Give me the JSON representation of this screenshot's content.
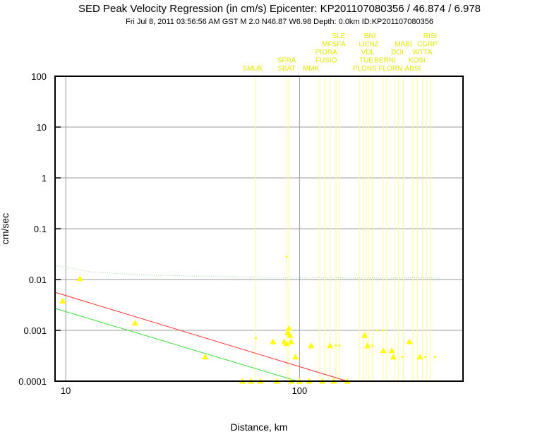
{
  "title": "SED Peak Velocity Regression (in cm/s) Epicenter: KP201107080356 / 46.874 / 6.978",
  "subtitle": "Fri Jul  8, 2011 03:56:56 AM GST   M 2.0   N46.87 W6.98   Depth: 0.0km   ID:KP201107080356",
  "colors": {
    "station": "#ffff00",
    "label": "#e6e600",
    "guide": "#ffff99",
    "regression_red": "#ff3030",
    "regression_green": "#33dd33",
    "upper_dotted": "#99dd99",
    "grid": "#999999",
    "frame": "#000000"
  },
  "chart_data": {
    "type": "scatter",
    "title": "SED Peak Velocity Regression (in cm/s) Epicenter: KP201107080356 / 46.874 / 6.978",
    "xlabel": "Distance, km",
    "ylabel": "cm/sec",
    "xscale": "log",
    "yscale": "log",
    "xlim": [
      9,
      500
    ],
    "ylim": [
      0.0001,
      100
    ],
    "x_ticks": [
      "10",
      "100"
    ],
    "y_ticks": [
      "0.0001",
      "0.001",
      "0.01",
      "0.1",
      "1",
      "10",
      "100"
    ],
    "grid": true,
    "marker": "triangle",
    "points": [
      {
        "x": 9.7,
        "y": 0.0038
      },
      {
        "x": 11.5,
        "y": 0.0105
      },
      {
        "x": 19.8,
        "y": 0.0014
      },
      {
        "x": 39.5,
        "y": 0.0003
      },
      {
        "x": 77,
        "y": 0.0006
      },
      {
        "x": 86,
        "y": 0.0006
      },
      {
        "x": 88,
        "y": 0.00055
      },
      {
        "x": 89,
        "y": 0.0009
      },
      {
        "x": 90,
        "y": 0.0011
      },
      {
        "x": 91,
        "y": 0.0008
      },
      {
        "x": 92,
        "y": 0.0006
      },
      {
        "x": 96,
        "y": 0.0003
      },
      {
        "x": 112,
        "y": 0.0005
      },
      {
        "x": 135,
        "y": 0.0005
      },
      {
        "x": 190,
        "y": 0.0008
      },
      {
        "x": 195,
        "y": 0.0005
      },
      {
        "x": 228,
        "y": 0.0004
      },
      {
        "x": 248,
        "y": 0.0004
      },
      {
        "x": 252,
        "y": 0.0003
      },
      {
        "x": 295,
        "y": 0.0006
      },
      {
        "x": 327,
        "y": 0.0003
      },
      {
        "x": 57,
        "y": 0.0001
      },
      {
        "x": 62,
        "y": 0.0001
      },
      {
        "x": 68,
        "y": 0.0001
      },
      {
        "x": 80,
        "y": 0.0001
      },
      {
        "x": 92,
        "y": 0.0001
      },
      {
        "x": 100,
        "y": 0.0001
      },
      {
        "x": 110,
        "y": 0.0001
      },
      {
        "x": 125,
        "y": 0.0001
      },
      {
        "x": 140,
        "y": 0.0001
      },
      {
        "x": 160,
        "y": 0.0001
      }
    ],
    "small_markers": [
      {
        "x": 65,
        "y": 0.0007
      },
      {
        "x": 88,
        "y": 0.028
      },
      {
        "x": 143,
        "y": 0.0005
      },
      {
        "x": 148,
        "y": 0.0005
      },
      {
        "x": 205,
        "y": 0.0005
      },
      {
        "x": 215,
        "y": 0.001
      },
      {
        "x": 228,
        "y": 0.001
      },
      {
        "x": 275,
        "y": 0.0003
      },
      {
        "x": 345,
        "y": 0.0003
      },
      {
        "x": 380,
        "y": 0.0003
      }
    ],
    "regression_lines": [
      {
        "color": "red",
        "x": [
          9,
          160
        ],
        "y": [
          0.0056,
          0.0001
        ]
      },
      {
        "color": "green",
        "x": [
          9,
          98
        ],
        "y": [
          0.0027,
          0.0001
        ]
      }
    ],
    "upper_curve": {
      "x": [
        9,
        13,
        20,
        40,
        80,
        150,
        250,
        400
      ],
      "y": [
        0.019,
        0.014,
        0.0125,
        0.0115,
        0.011,
        0.0108,
        0.0108,
        0.0109
      ]
    },
    "station_labels": [
      {
        "text": "SMUK",
        "x": 63,
        "row": 0
      },
      {
        "text": "SFRA",
        "x": 88,
        "row": 1
      },
      {
        "text": "SBAT",
        "x": 88,
        "row": 0
      },
      {
        "text": "MMK",
        "x": 112,
        "row": 0
      },
      {
        "text": "PIORA",
        "x": 130,
        "row": 2
      },
      {
        "text": "FUSIO",
        "x": 130,
        "row": 1
      },
      {
        "text": "SLE",
        "x": 147,
        "row": 4
      },
      {
        "text": "MFSFA",
        "x": 140,
        "row": 3
      },
      {
        "text": "BNI",
        "x": 200,
        "row": 4
      },
      {
        "text": "LIENZ",
        "x": 198,
        "row": 3
      },
      {
        "text": "VDL",
        "x": 196,
        "row": 2
      },
      {
        "text": "TUE",
        "x": 193,
        "row": 1
      },
      {
        "text": "PLONS",
        "x": 190,
        "row": 0
      },
      {
        "text": "BERNI",
        "x": 232,
        "row": 1
      },
      {
        "text": "FLORN",
        "x": 245,
        "row": 0
      },
      {
        "text": "MABI",
        "x": 278,
        "row": 3
      },
      {
        "text": "DOI",
        "x": 262,
        "row": 2
      },
      {
        "text": "RISI",
        "x": 362,
        "row": 4
      },
      {
        "text": "CGRP",
        "x": 352,
        "row": 3
      },
      {
        "text": "WTTA",
        "x": 335,
        "row": 2
      },
      {
        "text": "KOSI",
        "x": 318,
        "row": 1
      },
      {
        "text": "ABSI",
        "x": 305,
        "row": 0
      }
    ],
    "guide_lines": [
      65,
      88,
      90,
      122,
      128,
      135,
      143,
      148,
      180,
      187,
      193,
      198,
      205,
      228,
      236,
      255,
      265,
      278,
      305,
      320,
      335,
      350,
      362
    ]
  }
}
